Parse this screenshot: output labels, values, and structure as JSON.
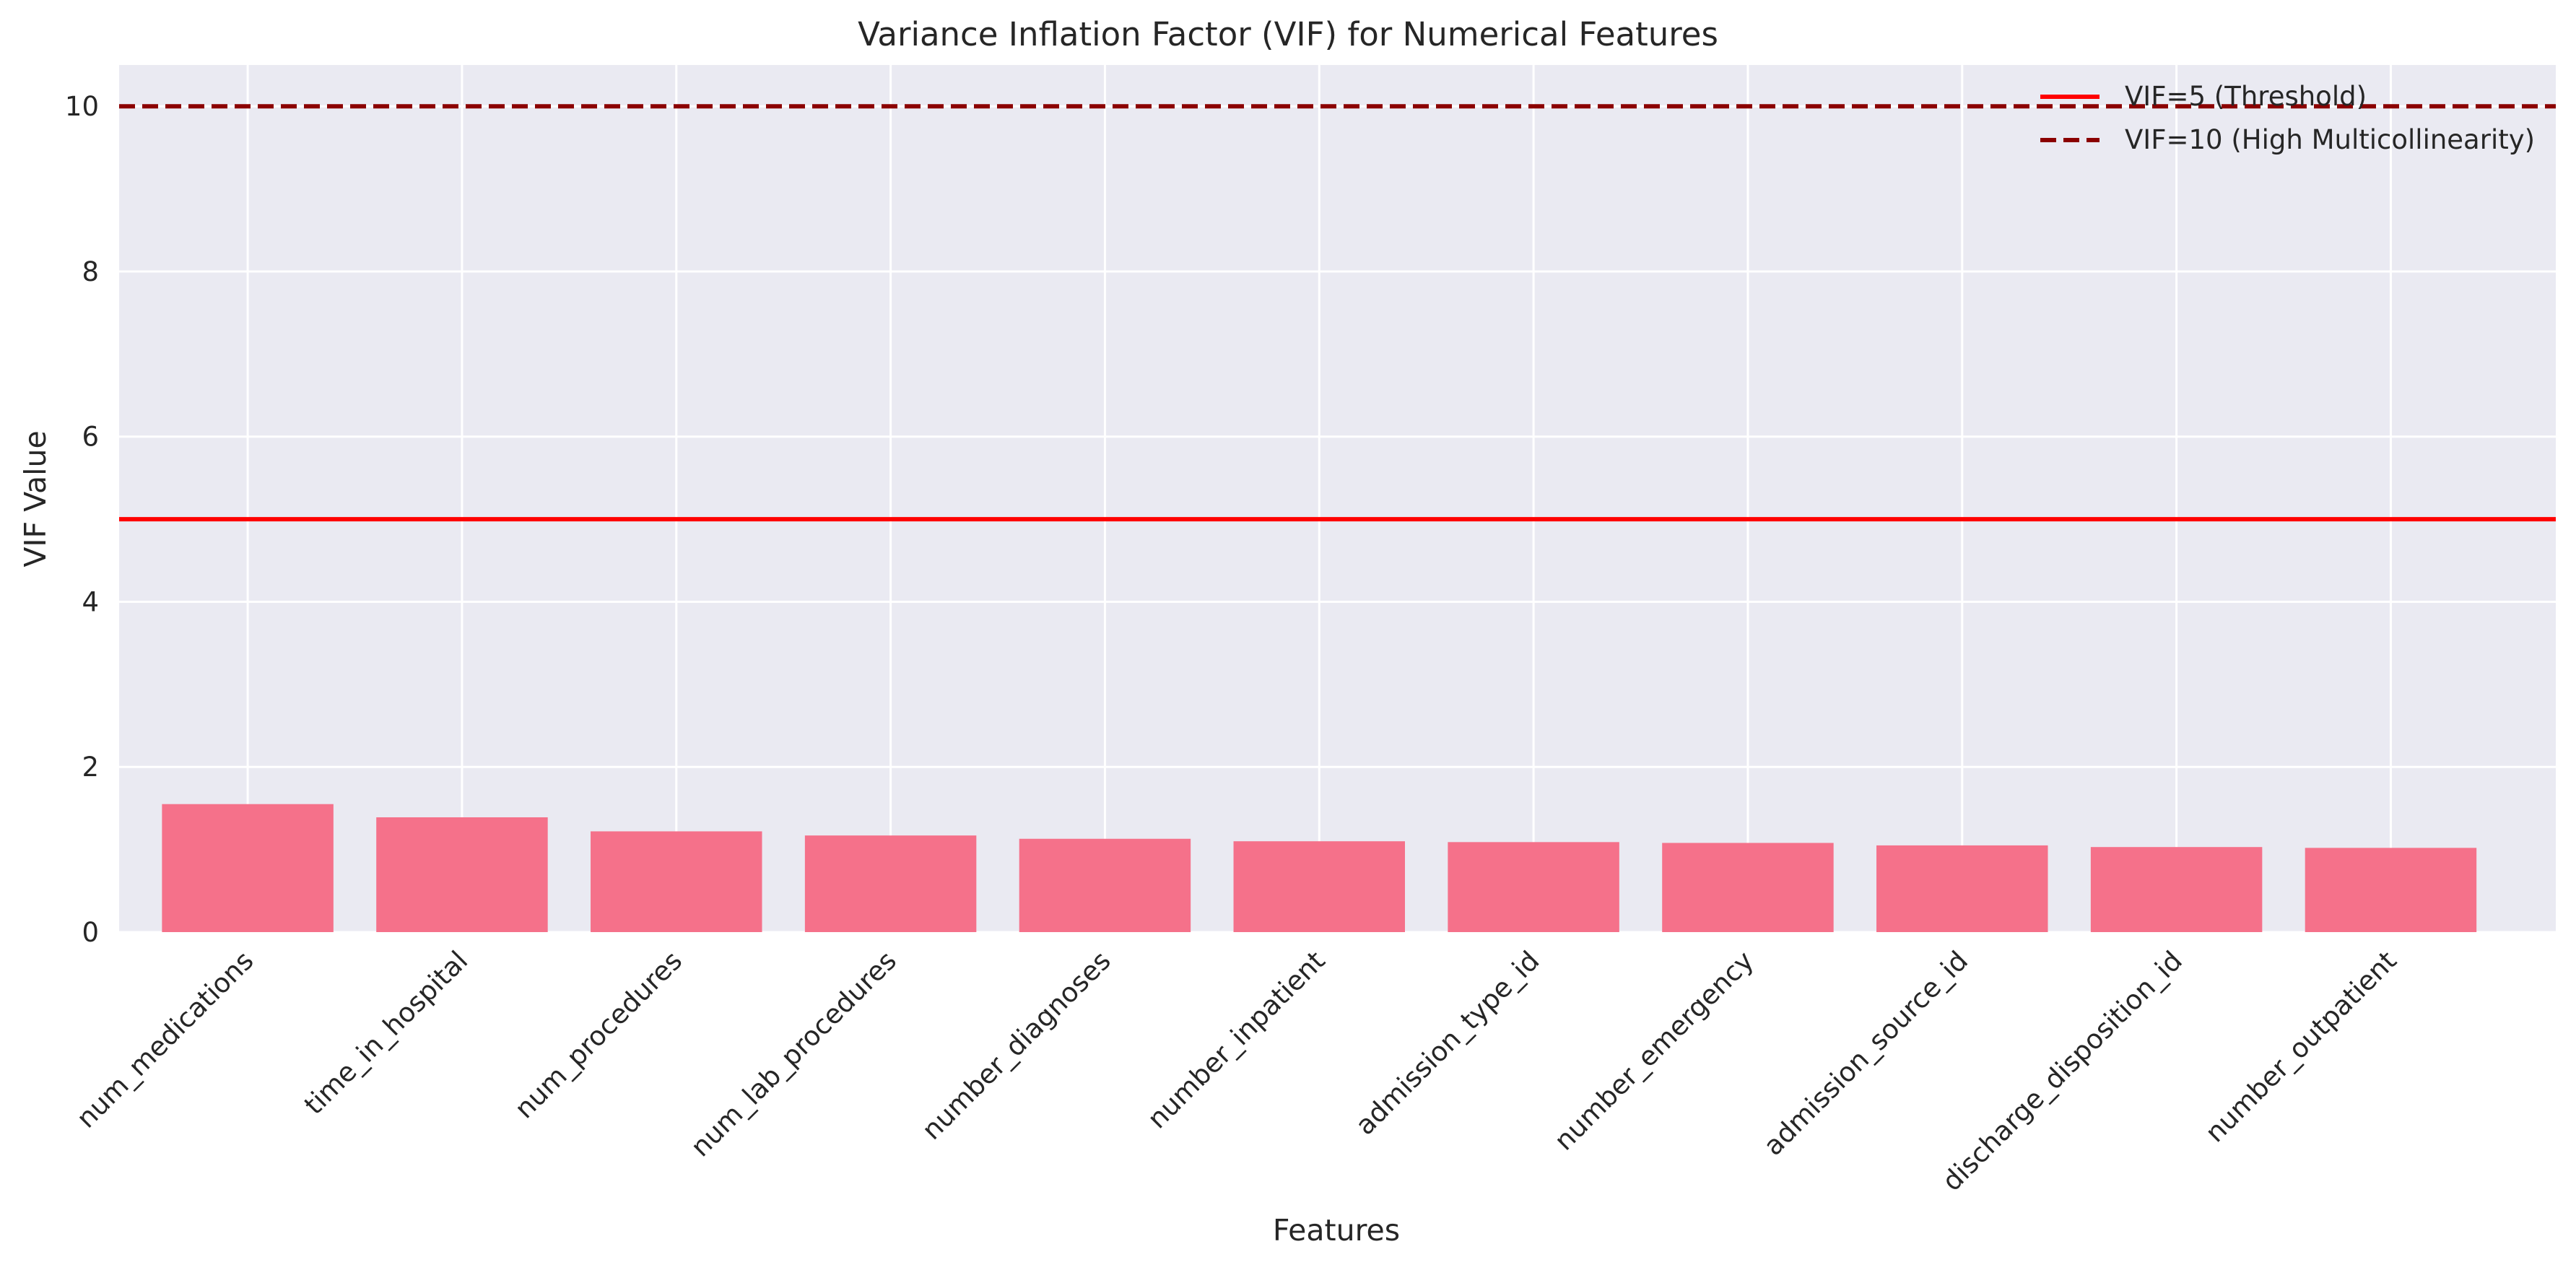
{
  "chart_data": {
    "type": "bar",
    "title": "Variance Inflation Factor (VIF) for Numerical Features",
    "xlabel": "Features",
    "ylabel": "VIF Value",
    "categories": [
      "num_medications",
      "time_in_hospital",
      "num_procedures",
      "num_lab_procedures",
      "number_diagnoses",
      "number_inpatient",
      "admission_type_id",
      "number_emergency",
      "admission_source_id",
      "discharge_disposition_id",
      "number_outpatient"
    ],
    "values": [
      1.55,
      1.39,
      1.22,
      1.17,
      1.13,
      1.1,
      1.09,
      1.08,
      1.05,
      1.03,
      1.02
    ],
    "ylim": [
      0,
      10.5
    ],
    "yticks": [
      0,
      2,
      4,
      6,
      8,
      10
    ],
    "grid": true,
    "legend_position": "top-right",
    "bar_color": "#f5718a",
    "background_color": "#eaeaf2",
    "reference_lines": [
      {
        "label": "VIF=5 (Threshold)",
        "value": 5,
        "color": "#ff0000",
        "style": "solid"
      },
      {
        "label": "VIF=10 (High Multicollinearity)",
        "value": 10,
        "color": "#8b0000",
        "style": "dashed"
      }
    ]
  }
}
